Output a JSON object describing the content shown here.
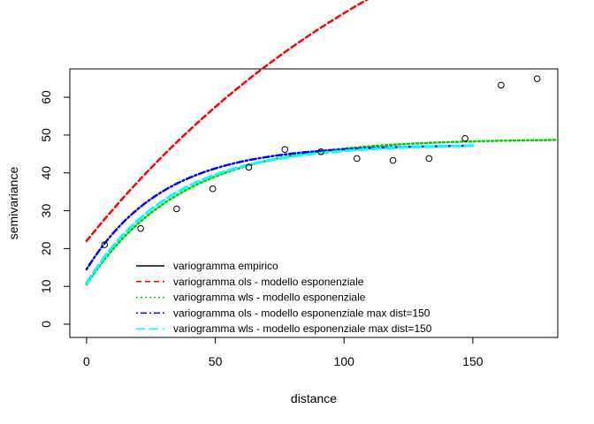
{
  "chart_data": {
    "type": "scatter",
    "xlabel": "distance",
    "ylabel": "semivariance",
    "xlim": [
      -6.5,
      183
    ],
    "ylim": [
      -3.5,
      67.5
    ],
    "x_ticks": [
      0,
      50,
      100,
      150
    ],
    "y_ticks": [
      0,
      10,
      20,
      30,
      40,
      50,
      60
    ],
    "grid": false,
    "legend_position": "bottom-center",
    "legend": [
      {
        "label": "variogramma empirico",
        "color": "#000000",
        "dash": "solid"
      },
      {
        "label": "variogramma ols - modello esponenziale",
        "color": "#ff0000",
        "dash": "dashed"
      },
      {
        "label": "variogramma wls - modello esponenziale",
        "color": "#00cd00",
        "dash": "dotted"
      },
      {
        "label": "variogramma ols - modello esponenziale max dist=150",
        "color": "#0000ff",
        "dash": "dotdash"
      },
      {
        "label": "variogramma wls - modello esponenziale max dist=150",
        "color": "#00ffff",
        "dash": "longdash"
      }
    ],
    "empirical_points": {
      "x": [
        7,
        21,
        35,
        49,
        63,
        77,
        91,
        105,
        119,
        133,
        147,
        161,
        175
      ],
      "y": [
        21,
        25.3,
        30.5,
        35.8,
        41.5,
        46.2,
        45.6,
        43.8,
        43.3,
        43.8,
        49.1,
        63.2,
        64.9
      ]
    },
    "series": [
      {
        "name": "variogramma ols - modello esponenziale",
        "color": "#ff0000",
        "x_max": 183,
        "model": {
          "nugget": 22,
          "sill": 140,
          "range": 140
        }
      },
      {
        "name": "variogramma wls - modello esponenziale",
        "color": "#00cd00",
        "x_max": 183,
        "model": {
          "nugget": 10.5,
          "sill": 49,
          "range": 37
        }
      },
      {
        "name": "variogramma ols - modello esponenziale max dist=150",
        "color": "#0000ff",
        "x_max": 150,
        "model": {
          "nugget": 14.5,
          "sill": 47.4,
          "range": 30
        }
      },
      {
        "name": "variogramma wls - modello esponenziale max dist=150",
        "color": "#00ffff",
        "x_max": 150,
        "model": {
          "nugget": 10.8,
          "sill": 47.6,
          "range": 33
        }
      }
    ]
  }
}
